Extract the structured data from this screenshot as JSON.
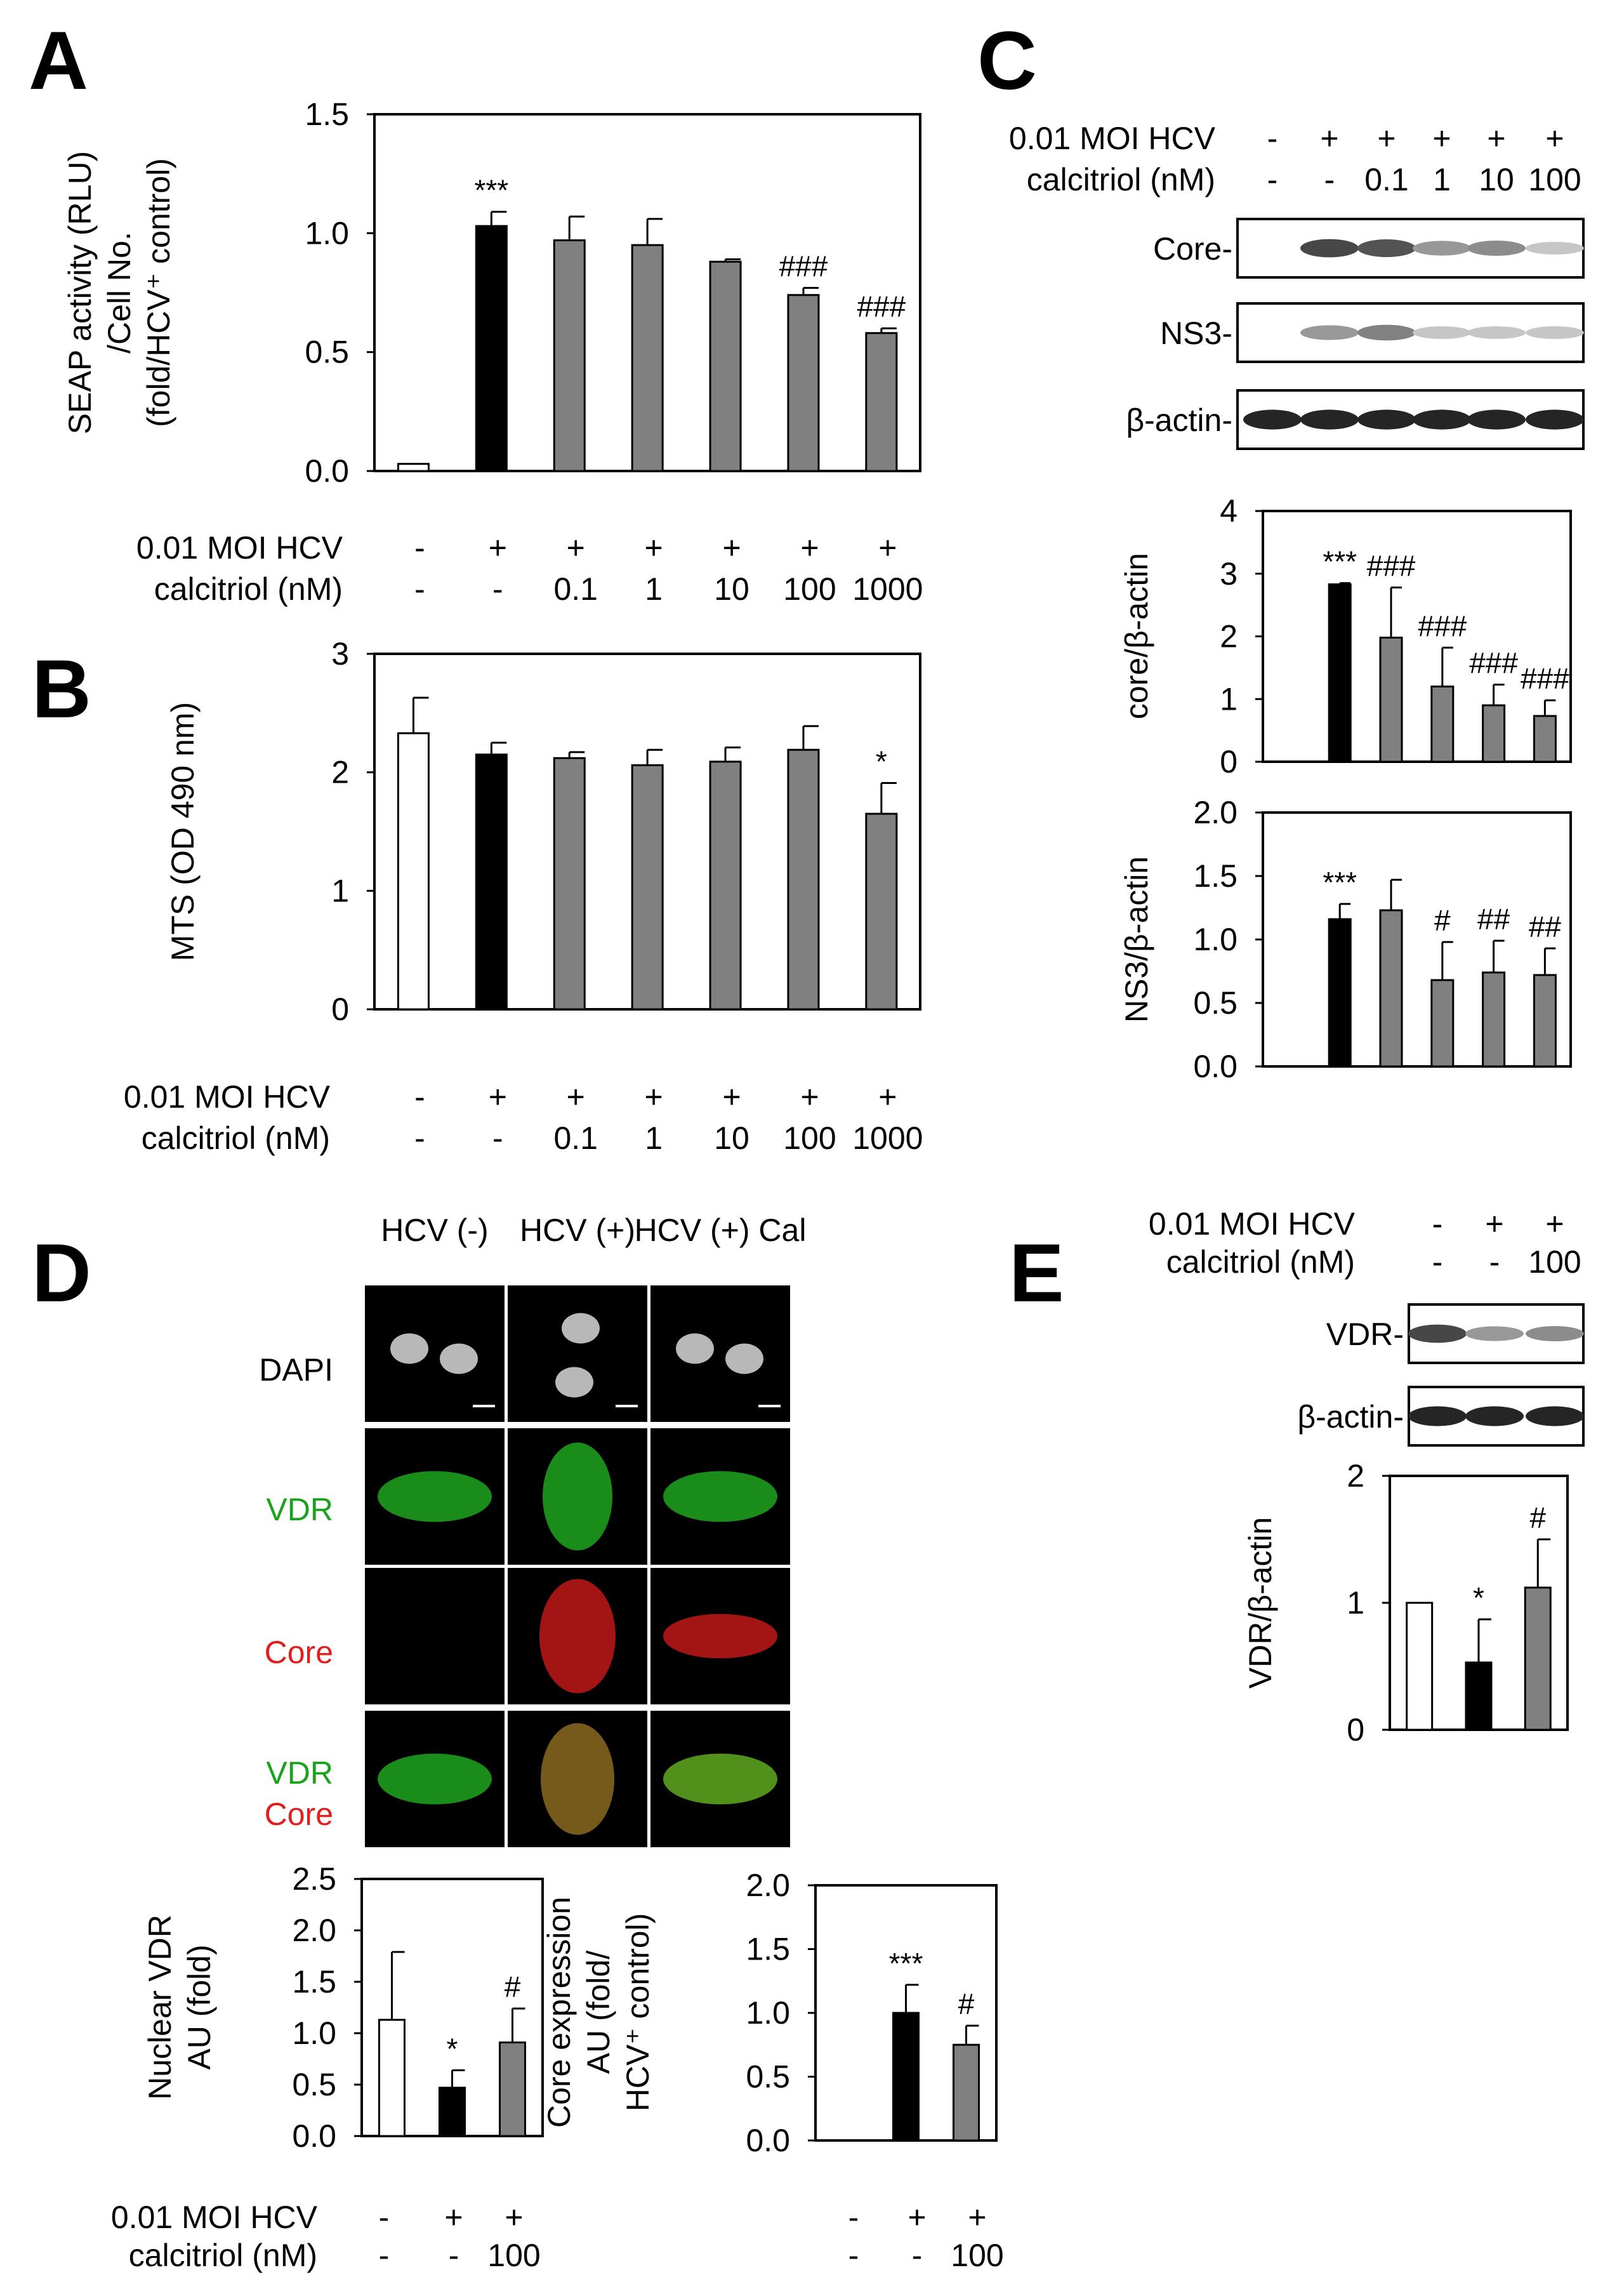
{
  "colors": {
    "untreated": "#ffffff",
    "hcv": "#000000",
    "calcitriol": "#808080",
    "vdr_green": "#1aa31a",
    "core_red": "#e02020"
  },
  "panels": {
    "A": "A",
    "B": "B",
    "C": "C",
    "D": "D",
    "E": "E"
  },
  "condition_labels": {
    "hcv": "0.01 MOI HCV",
    "cal": "calcitriol (nM)"
  },
  "blots": {
    "C": [
      "Core-",
      "NS3-",
      "β-actin-"
    ],
    "E": [
      "VDR-",
      "β-actin-"
    ]
  },
  "microscopy": {
    "columns": [
      "HCV (-)",
      "HCV (+)",
      "HCV (+) Cal"
    ],
    "rows": {
      "dapi": "DAPI",
      "vdr": "VDR",
      "core": "Core",
      "merge_vdr": "VDR",
      "merge_core": "Core"
    }
  },
  "chart_data": [
    {
      "id": "A",
      "type": "bar",
      "ylabel_lines": [
        "SEAP activity (RLU)",
        "/Cell No.",
        "(fold/HCV⁺ control)"
      ],
      "ylim": [
        0,
        1.5
      ],
      "yticks": [
        "0.0",
        "0.5",
        "1.0",
        "1.5"
      ],
      "hcv": [
        "-",
        "+",
        "+",
        "+",
        "+",
        "+",
        "+"
      ],
      "cal": [
        "-",
        "-",
        "0.1",
        "1",
        "10",
        "100",
        "1000"
      ],
      "values": [
        0.03,
        1.03,
        0.97,
        0.95,
        0.88,
        0.74,
        0.58
      ],
      "errors": [
        0.0,
        0.06,
        0.1,
        0.11,
        0.01,
        0.03,
        0.02
      ],
      "fills": [
        "untreated",
        "hcv",
        "calcitriol",
        "calcitriol",
        "calcitriol",
        "calcitriol",
        "calcitriol"
      ],
      "annotations": [
        "",
        "***",
        "",
        "",
        "",
        "###",
        "###"
      ]
    },
    {
      "id": "B",
      "type": "bar",
      "ylabel_lines": [
        "MTS (OD 490 nm)"
      ],
      "ylim": [
        0,
        3
      ],
      "yticks": [
        "0",
        "1",
        "2",
        "3"
      ],
      "hcv": [
        "-",
        "+",
        "+",
        "+",
        "+",
        "+",
        "+"
      ],
      "cal": [
        "-",
        "-",
        "0.1",
        "1",
        "10",
        "100",
        "1000"
      ],
      "values": [
        2.33,
        2.15,
        2.12,
        2.06,
        2.09,
        2.19,
        1.65
      ],
      "errors": [
        0.3,
        0.1,
        0.05,
        0.13,
        0.12,
        0.2,
        0.26
      ],
      "fills": [
        "untreated",
        "hcv",
        "calcitriol",
        "calcitriol",
        "calcitriol",
        "calcitriol",
        "calcitriol"
      ],
      "annotations": [
        "",
        "",
        "",
        "",
        "",
        "",
        "*"
      ]
    },
    {
      "id": "C-blot-header",
      "type": "table",
      "hcv": [
        "-",
        "+",
        "+",
        "+",
        "+",
        "+"
      ],
      "cal": [
        "-",
        "-",
        "0.1",
        "1",
        "10",
        "100"
      ]
    },
    {
      "id": "C1",
      "type": "bar",
      "ylabel_lines": [
        "core/β-actin"
      ],
      "ylim": [
        0,
        4
      ],
      "yticks": [
        "0",
        "1",
        "2",
        "3",
        "4"
      ],
      "values": [
        0.0,
        2.83,
        1.98,
        1.2,
        0.9,
        0.73
      ],
      "errors": [
        0.0,
        0.02,
        0.8,
        0.62,
        0.33,
        0.25
      ],
      "fills": [
        "untreated",
        "hcv",
        "calcitriol",
        "calcitriol",
        "calcitriol",
        "calcitriol"
      ],
      "annotations": [
        "",
        "***",
        "###",
        "###",
        "###",
        "###"
      ]
    },
    {
      "id": "C2",
      "type": "bar",
      "ylabel_lines": [
        "NS3/β-actin"
      ],
      "ylim": [
        0,
        2
      ],
      "yticks": [
        "0.0",
        "0.5",
        "1.0",
        "1.5",
        "2.0"
      ],
      "values": [
        0.0,
        1.16,
        1.23,
        0.68,
        0.74,
        0.72
      ],
      "errors": [
        0.0,
        0.12,
        0.24,
        0.3,
        0.25,
        0.21
      ],
      "fills": [
        "untreated",
        "hcv",
        "calcitriol",
        "calcitriol",
        "calcitriol",
        "calcitriol"
      ],
      "annotations": [
        "",
        "***",
        "",
        "#",
        "##",
        "##"
      ]
    },
    {
      "id": "D1",
      "type": "bar",
      "ylabel_lines": [
        "Nuclear VDR",
        "AU (fold)"
      ],
      "ylim": [
        0,
        2.5
      ],
      "yticks": [
        "0.0",
        "0.5",
        "1.0",
        "1.5",
        "2.0",
        "2.5"
      ],
      "hcv": [
        "-",
        "+",
        "+"
      ],
      "cal": [
        "-",
        "-",
        "100"
      ],
      "values": [
        1.13,
        0.47,
        0.91
      ],
      "errors": [
        0.66,
        0.17,
        0.33
      ],
      "fills": [
        "untreated",
        "hcv",
        "calcitriol"
      ],
      "annotations": [
        "",
        "*",
        "#"
      ]
    },
    {
      "id": "D2",
      "type": "bar",
      "ylabel_lines": [
        "Core expression",
        "AU (fold/",
        "HCV⁺ control)"
      ],
      "ylim": [
        0,
        2
      ],
      "yticks": [
        "0.0",
        "0.5",
        "1.0",
        "1.5",
        "2.0"
      ],
      "hcv": [
        "-",
        "+",
        "+"
      ],
      "cal": [
        "-",
        "-",
        "100"
      ],
      "values": [
        0.0,
        1.0,
        0.75
      ],
      "errors": [
        0.0,
        0.22,
        0.15
      ],
      "fills": [
        "untreated",
        "hcv",
        "calcitriol"
      ],
      "annotations": [
        "",
        "***",
        "#"
      ]
    },
    {
      "id": "E-blot-header",
      "type": "table",
      "hcv": [
        "-",
        "+",
        "+"
      ],
      "cal": [
        "-",
        "-",
        "100"
      ]
    },
    {
      "id": "E1",
      "type": "bar",
      "ylabel_lines": [
        "VDR/β-actin"
      ],
      "ylim": [
        0,
        2
      ],
      "yticks": [
        "0",
        "1",
        "2"
      ],
      "values": [
        1.0,
        0.53,
        1.12
      ],
      "errors": [
        0.0,
        0.34,
        0.38
      ],
      "fills": [
        "untreated",
        "hcv",
        "calcitriol"
      ],
      "annotations": [
        "",
        "*",
        "#"
      ]
    }
  ]
}
